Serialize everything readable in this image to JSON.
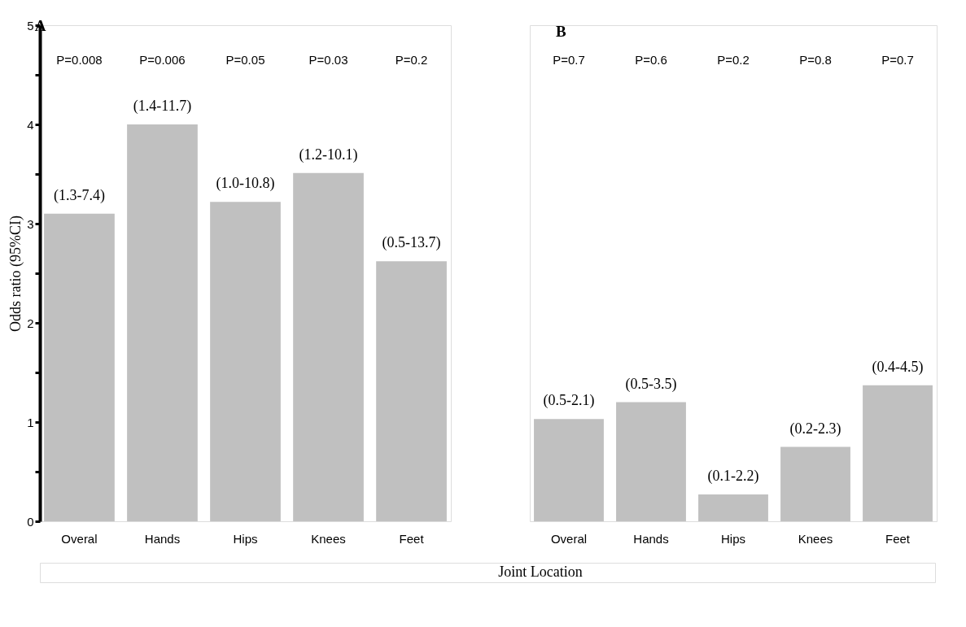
{
  "chart_data": [
    {
      "type": "bar",
      "title": "A",
      "ylabel": "Odds ratio (95%CI)",
      "xlabel": "Joint Location",
      "categories": [
        "Overal",
        "Hands",
        "Hips",
        "Knees",
        "Feet"
      ],
      "values": [
        3.1,
        4.0,
        3.22,
        3.51,
        2.62
      ],
      "color": "#c0c0c0",
      "value_labels": [
        "(1.3-7.4)",
        "(1.4-11.7)",
        "(1.0-10.8)",
        "(1.2-10.1)",
        "(0.5-13.7)"
      ],
      "ylim": [
        0,
        5
      ],
      "yticks": [
        0,
        {
          "value": 0.5,
          "label": null
        },
        1,
        {
          "value": 1.5,
          "label": null
        },
        2,
        {
          "value": 2.5,
          "label": null
        },
        3,
        {
          "value": 3.5,
          "label": null
        },
        4,
        {
          "value": 4.5,
          "label": null
        },
        5
      ],
      "annotations": [
        "P=0.008",
        "P=0.006",
        "P=0.05",
        "P=0.03",
        "P=0.2"
      ]
    },
    {
      "type": "bar",
      "title": "B",
      "categories": [
        "Overal",
        "Hands",
        "Hips",
        "Knees",
        "Feet"
      ],
      "values": [
        1.03,
        1.2,
        0.27,
        0.75,
        1.37
      ],
      "color": "#c0c0c0",
      "value_labels": [
        "(0.5-2.1)",
        "(0.5-3.5)",
        "(0.1-2.2)",
        "(0.2-2.3)",
        "(0.4-4.5)"
      ],
      "ylim": [
        0,
        5
      ],
      "tick_labels": "x",
      "annotations": [
        "P=0.7",
        "P=0.6",
        "P=0.2",
        "P=0.8",
        "P=0.7"
      ]
    }
  ]
}
